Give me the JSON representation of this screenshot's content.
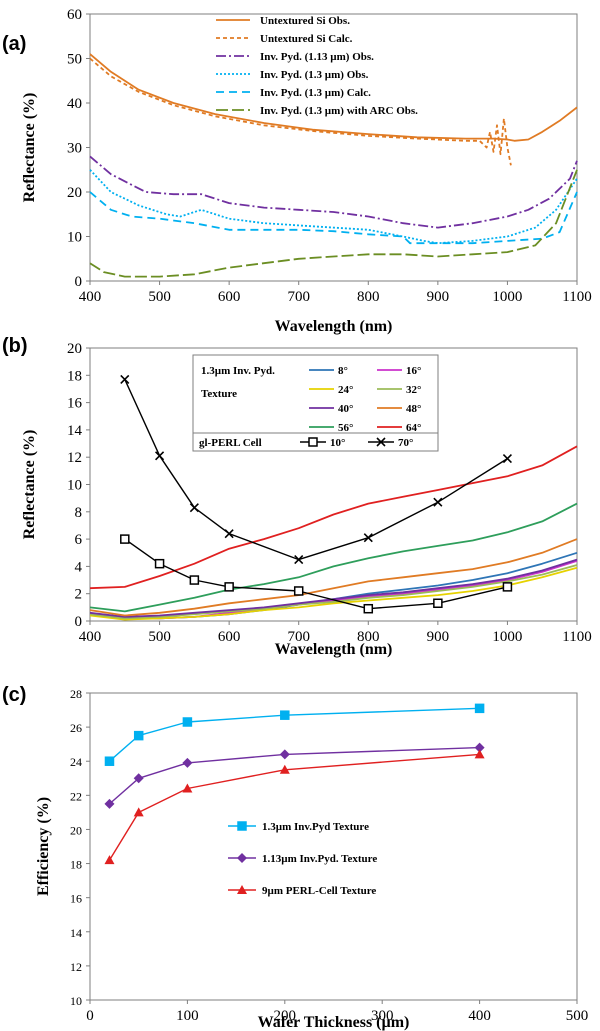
{
  "chart_data": [
    {
      "id": "a",
      "panel_label": "(a)",
      "type": "line",
      "xlabel": "Wavelength (nm)",
      "ylabel": "Reflectance (%)",
      "xlim": [
        400,
        1100
      ],
      "ylim": [
        0,
        60
      ],
      "xticks": [
        400,
        500,
        600,
        700,
        800,
        900,
        1000,
        1100
      ],
      "yticks": [
        0,
        10,
        20,
        30,
        40,
        50,
        60
      ],
      "legend_position": "top-right",
      "series": [
        {
          "name": "Untextured Si Obs.",
          "color": "#E07B24",
          "dash": "solid",
          "x": [
            400,
            430,
            470,
            520,
            580,
            650,
            720,
            800,
            870,
            940,
            960,
            980,
            1000,
            1010,
            1030,
            1050,
            1075,
            1100
          ],
          "y": [
            51,
            47,
            43,
            40,
            37.5,
            35.5,
            34,
            33,
            32.3,
            32,
            32,
            32,
            31.8,
            31.5,
            31.8,
            33.5,
            36,
            39
          ]
        },
        {
          "name": "Untextured Si Calc.",
          "color": "#E07B24",
          "dash": "4,3",
          "x": [
            400,
            430,
            470,
            520,
            580,
            650,
            720,
            800,
            870,
            940,
            960,
            970,
            975,
            980,
            985,
            990,
            995,
            1000,
            1005
          ],
          "y": [
            50,
            46,
            42.5,
            39.5,
            37,
            35,
            33.7,
            32.6,
            32,
            31.5,
            31.5,
            30,
            33.5,
            29,
            35,
            28.5,
            36.5,
            30,
            26
          ]
        },
        {
          "name": "Inv. Pyd. (1.13 µm) Obs.",
          "color": "#7030A0",
          "dash": "10,3,2,3",
          "x": [
            400,
            430,
            480,
            520,
            560,
            600,
            650,
            700,
            750,
            800,
            850,
            900,
            950,
            1000,
            1030,
            1060,
            1090,
            1100
          ],
          "y": [
            28,
            24,
            20,
            19.5,
            19.5,
            17.5,
            16.5,
            16,
            15.5,
            14.5,
            13,
            12,
            13,
            14.5,
            16,
            18.5,
            23,
            27
          ]
        },
        {
          "name": "Inv. Pyd. (1.3 µm) Obs.",
          "color": "#00B0F0",
          "dash": "2,2",
          "x": [
            400,
            430,
            470,
            510,
            530,
            560,
            600,
            650,
            700,
            750,
            800,
            850,
            880,
            900,
            950,
            1000,
            1040,
            1070,
            1100
          ],
          "y": [
            25,
            20,
            17,
            15,
            14.5,
            16,
            14,
            13,
            12.5,
            12,
            11.5,
            10,
            9,
            8.5,
            9,
            10,
            12,
            16,
            23
          ]
        },
        {
          "name": "Inv. Pyd. (1.3 µm) Calc.",
          "color": "#00B0F0",
          "dash": "8,5",
          "x": [
            400,
            430,
            460,
            500,
            550,
            600,
            650,
            700,
            750,
            800,
            850,
            860,
            900,
            950,
            1000,
            1050,
            1075,
            1100
          ],
          "y": [
            20,
            16,
            14.5,
            14,
            13,
            11.5,
            11.5,
            11.5,
            11.2,
            10.5,
            10,
            8.5,
            8.5,
            8.5,
            9,
            9.5,
            11,
            20
          ]
        },
        {
          "name": "Inv. Pyd. (1.3 µm) with ARC Obs.",
          "color": "#6B8E23",
          "dash": "12,4",
          "x": [
            400,
            420,
            450,
            500,
            550,
            600,
            650,
            700,
            750,
            800,
            850,
            900,
            950,
            1000,
            1040,
            1070,
            1100
          ],
          "y": [
            4,
            2,
            1,
            1,
            1.5,
            3,
            4,
            5,
            5.5,
            6,
            6,
            5.5,
            6,
            6.5,
            8,
            13,
            25
          ]
        }
      ]
    },
    {
      "id": "b",
      "panel_label": "(b)",
      "type": "line",
      "xlabel": "Wavelength (nm)",
      "ylabel": "Reflectance (%)",
      "xlim": [
        400,
        1100
      ],
      "ylim": [
        0,
        20
      ],
      "xticks": [
        400,
        500,
        600,
        700,
        800,
        900,
        1000,
        1100
      ],
      "yticks": [
        0,
        2,
        4,
        6,
        8,
        10,
        12,
        14,
        16,
        18,
        20
      ],
      "legend_group_title": "1.3µm Inv. Pyd. Texture",
      "legend_group2_title": "gl-PERL Cell",
      "legend_position": "top-center",
      "series": [
        {
          "name": "8°",
          "color": "#2E75B6",
          "x": [
            400,
            450,
            500,
            550,
            600,
            650,
            700,
            750,
            800,
            850,
            900,
            950,
            1000,
            1050,
            1100
          ],
          "y": [
            0.5,
            0.2,
            0.2,
            0.3,
            0.5,
            0.8,
            1.2,
            1.6,
            2.0,
            2.3,
            2.6,
            3.0,
            3.5,
            4.2,
            5.0
          ]
        },
        {
          "name": "16°",
          "color": "#CC33CC",
          "x": [
            400,
            450,
            500,
            550,
            600,
            650,
            700,
            750,
            800,
            850,
            900,
            950,
            1000,
            1050,
            1100
          ],
          "y": [
            0.5,
            0.2,
            0.2,
            0.3,
            0.6,
            0.9,
            1.2,
            1.5,
            1.8,
            2.0,
            2.3,
            2.6,
            3.0,
            3.6,
            4.4
          ]
        },
        {
          "name": "24°",
          "color": "#E6D200",
          "x": [
            400,
            450,
            500,
            550,
            600,
            650,
            700,
            750,
            800,
            850,
            900,
            950,
            1000,
            1050,
            1100
          ],
          "y": [
            0.4,
            0.1,
            0.2,
            0.3,
            0.5,
            0.8,
            1.0,
            1.3,
            1.5,
            1.7,
            1.9,
            2.2,
            2.6,
            3.2,
            3.9
          ]
        },
        {
          "name": "32°",
          "color": "#9BBB59",
          "x": [
            400,
            450,
            500,
            550,
            600,
            650,
            700,
            750,
            800,
            850,
            900,
            950,
            1000,
            1050,
            1100
          ],
          "y": [
            0.5,
            0.2,
            0.3,
            0.5,
            0.7,
            0.9,
            1.2,
            1.4,
            1.7,
            1.9,
            2.2,
            2.5,
            2.9,
            3.4,
            4.1
          ]
        },
        {
          "name": "40°",
          "color": "#7030A0",
          "x": [
            400,
            450,
            500,
            550,
            600,
            650,
            700,
            750,
            800,
            850,
            900,
            950,
            1000,
            1050,
            1100
          ],
          "y": [
            0.6,
            0.3,
            0.4,
            0.6,
            0.8,
            1.0,
            1.3,
            1.6,
            1.9,
            2.1,
            2.4,
            2.7,
            3.1,
            3.7,
            4.5
          ]
        },
        {
          "name": "48°",
          "color": "#E07B24",
          "x": [
            400,
            450,
            500,
            550,
            600,
            650,
            700,
            750,
            800,
            850,
            900,
            950,
            1000,
            1050,
            1100
          ],
          "y": [
            0.8,
            0.4,
            0.6,
            0.9,
            1.3,
            1.6,
            1.9,
            2.4,
            2.9,
            3.2,
            3.5,
            3.8,
            4.3,
            5.0,
            6.0
          ]
        },
        {
          "name": "56°",
          "color": "#2E9E5B",
          "x": [
            400,
            450,
            500,
            550,
            600,
            650,
            700,
            750,
            800,
            850,
            900,
            950,
            1000,
            1050,
            1100
          ],
          "y": [
            1.0,
            0.7,
            1.2,
            1.7,
            2.3,
            2.7,
            3.2,
            4.0,
            4.6,
            5.1,
            5.5,
            5.9,
            6.5,
            7.3,
            8.6
          ]
        },
        {
          "name": "64°",
          "color": "#E02020",
          "x": [
            400,
            450,
            500,
            550,
            600,
            650,
            700,
            750,
            800,
            850,
            900,
            950,
            1000,
            1050,
            1100
          ],
          "y": [
            2.4,
            2.5,
            3.3,
            4.2,
            5.3,
            6.0,
            6.8,
            7.8,
            8.6,
            9.1,
            9.6,
            10.1,
            10.6,
            11.4,
            12.8
          ]
        },
        {
          "name": "10°",
          "color": "#000000",
          "marker": "square",
          "x": [
            450,
            500,
            550,
            600,
            700,
            800,
            900,
            1000
          ],
          "y": [
            6.0,
            4.2,
            3.0,
            2.5,
            2.2,
            0.9,
            1.3,
            2.5
          ]
        },
        {
          "name": "70°",
          "color": "#000000",
          "marker": "x",
          "x": [
            450,
            500,
            550,
            600,
            700,
            800,
            900,
            1000
          ],
          "y": [
            17.7,
            12.1,
            8.3,
            6.4,
            4.5,
            6.1,
            8.7,
            11.9
          ]
        }
      ]
    },
    {
      "id": "c",
      "panel_label": "(c)",
      "type": "line",
      "xlabel": "Wafer Thickness (µm)",
      "ylabel": "Efficiency (%)",
      "xlim": [
        0,
        500
      ],
      "ylim": [
        10,
        28
      ],
      "xticks": [
        0,
        100,
        200,
        300,
        400,
        500
      ],
      "yticks": [
        10,
        12,
        14,
        16,
        18,
        20,
        22,
        24,
        26,
        28
      ],
      "legend_position": "center",
      "series": [
        {
          "name": "1.3µm Inv.Pyd Texture",
          "color": "#00B0F0",
          "marker": "square",
          "x": [
            20,
            50,
            100,
            200,
            400
          ],
          "y": [
            24.0,
            25.5,
            26.3,
            26.7,
            27.1
          ]
        },
        {
          "name": "1.13µm Inv.Pyd. Texture",
          "color": "#7030A0",
          "marker": "diamond",
          "x": [
            20,
            50,
            100,
            200,
            400
          ],
          "y": [
            21.5,
            23.0,
            23.9,
            24.4,
            24.8
          ]
        },
        {
          "name": "9µm PERL-Cell Texture",
          "color": "#E02020",
          "marker": "triangle",
          "x": [
            20,
            50,
            100,
            200,
            400
          ],
          "y": [
            18.2,
            21.0,
            22.4,
            23.5,
            24.4
          ]
        }
      ]
    }
  ]
}
